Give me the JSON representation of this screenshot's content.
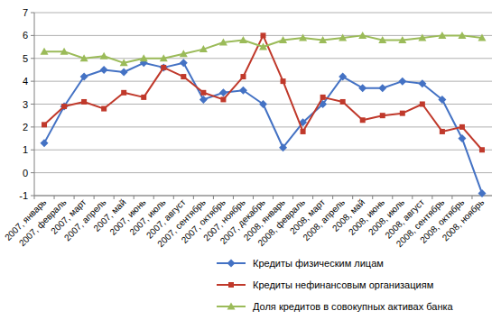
{
  "chart_data": {
    "type": "line",
    "categories": [
      "2007, январь",
      "2007, февраль",
      "2007, март",
      "2007, апрель",
      "2007, май",
      "2007, июнь",
      "2007, июль",
      "2007, август",
      "2007, сентябрь",
      "2007, октябрь",
      "2007, ноябрь",
      "2007, декабрь",
      "2008, январь",
      "2008, февраль",
      "2008, март",
      "2008, апрель",
      "2008, май",
      "2008, июнь",
      "2008, июль",
      "2008, август",
      "2008, сентябрь",
      "2008, октябрь",
      "2008, ноябрь"
    ],
    "series": [
      {
        "name": "Кредиты физическим лицам",
        "color": "#4472c4",
        "marker": "diamond",
        "values": [
          1.3,
          2.9,
          4.2,
          4.5,
          4.4,
          4.8,
          4.6,
          4.8,
          3.2,
          3.5,
          3.6,
          3.0,
          1.1,
          2.2,
          3.0,
          4.2,
          3.7,
          3.7,
          4.0,
          3.9,
          3.2,
          1.5,
          -0.9
        ]
      },
      {
        "name": "Кредиты нефинансовым организациям",
        "color": "#c0392b",
        "marker": "square",
        "values": [
          2.1,
          2.9,
          3.1,
          2.8,
          3.5,
          3.3,
          4.6,
          4.2,
          3.5,
          3.2,
          4.2,
          6.0,
          4.0,
          1.8,
          3.3,
          3.1,
          2.3,
          2.5,
          2.6,
          3.0,
          1.8,
          2.0,
          1.0
        ]
      },
      {
        "name": "Доля кредитов в совокупных активах банка",
        "color": "#9bbb59",
        "marker": "triangle",
        "values": [
          5.3,
          5.3,
          5.0,
          5.1,
          4.8,
          5.0,
          5.0,
          5.2,
          5.4,
          5.7,
          5.8,
          5.5,
          5.8,
          5.9,
          5.8,
          5.9,
          6.0,
          5.8,
          5.8,
          5.9,
          6.0,
          6.0,
          5.9
        ]
      }
    ],
    "ylim": [
      -1,
      7
    ],
    "yticks": [
      -1,
      0,
      1,
      2,
      3,
      4,
      5,
      6,
      7
    ],
    "grid": true,
    "legend": "bottom"
  }
}
